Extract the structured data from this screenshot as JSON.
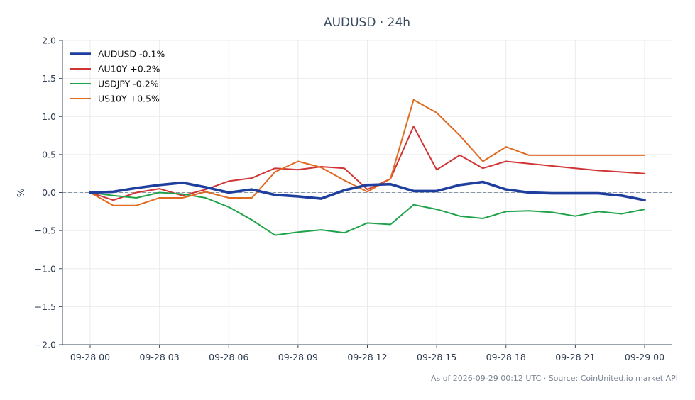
{
  "chart_data": {
    "type": "line",
    "title": "AUDUSD · 24h",
    "ylabel": "%",
    "xlabel": "",
    "ylim": [
      -2.0,
      2.0
    ],
    "yticks": [
      2.0,
      1.5,
      1.0,
      0.5,
      0.0,
      -0.5,
      -1.0,
      -1.5,
      -2.0
    ],
    "ytick_labels": [
      "2.0",
      "1.5",
      "1.0",
      "0.5",
      "0.0",
      "−0.5",
      "−1.0",
      "−1.5",
      "−2.0"
    ],
    "x": [
      "09-28 00:00",
      "09-28 01:00",
      "09-28 02:00",
      "09-28 03:00",
      "09-28 04:00",
      "09-28 05:00",
      "09-28 06:00",
      "09-28 07:00",
      "09-28 08:00",
      "09-28 09:00",
      "09-28 10:00",
      "09-28 11:00",
      "09-28 12:00",
      "09-28 13:00",
      "09-28 14:00",
      "09-28 15:00",
      "09-28 16:00",
      "09-28 17:00",
      "09-28 18:00",
      "09-28 19:00",
      "09-28 20:00",
      "09-28 21:00",
      "09-28 22:00",
      "09-28 23:00",
      "09-29 00:00"
    ],
    "xticks": [
      0,
      3,
      6,
      9,
      12,
      15,
      18,
      21,
      24
    ],
    "xtick_labels": [
      "09-28 00",
      "09-28 03",
      "09-28 06",
      "09-28 09",
      "09-28 12",
      "09-28 15",
      "09-28 18",
      "09-28 21",
      "09-29 00"
    ],
    "grid": true,
    "zero_line": true,
    "legend_position": "top-left",
    "series": [
      {
        "name": "AUDUSD -0.1%",
        "color": "#1f3f9e",
        "emphasis": true,
        "values": [
          0.0,
          0.01,
          0.06,
          0.1,
          0.13,
          0.07,
          0.0,
          0.04,
          -0.03,
          -0.05,
          -0.08,
          0.03,
          0.1,
          0.11,
          0.02,
          0.02,
          0.1,
          0.14,
          0.04,
          0.0,
          -0.01,
          -0.01,
          -0.01,
          -0.04,
          -0.1
        ]
      },
      {
        "name": "AU10Y +0.2%",
        "color": "#d13434",
        "values": [
          0.0,
          -0.1,
          0.0,
          0.05,
          -0.04,
          0.04,
          0.15,
          0.19,
          0.32,
          0.3,
          0.34,
          0.32,
          0.04,
          0.18,
          0.87,
          0.3,
          0.49,
          0.32,
          0.41,
          0.38,
          0.35,
          0.32,
          0.29,
          0.27,
          0.25
        ]
      },
      {
        "name": "USDJPY -0.2%",
        "color": "#1fa24a",
        "values": [
          0.0,
          -0.04,
          -0.07,
          0.0,
          -0.02,
          -0.07,
          -0.19,
          -0.36,
          -0.56,
          -0.52,
          -0.49,
          -0.53,
          -0.4,
          -0.42,
          -0.16,
          -0.22,
          -0.31,
          -0.34,
          -0.25,
          -0.24,
          -0.26,
          -0.31,
          -0.25,
          -0.28,
          -0.22
        ]
      },
      {
        "name": "US10Y +0.5%",
        "color": "#e06a1f",
        "values": [
          0.0,
          -0.17,
          -0.17,
          -0.07,
          -0.07,
          0.01,
          -0.07,
          -0.07,
          0.27,
          0.41,
          0.33,
          0.16,
          0.01,
          0.18,
          1.22,
          1.05,
          0.75,
          0.41,
          0.6,
          0.49,
          0.49,
          0.49,
          0.49,
          0.49,
          0.49
        ]
      }
    ],
    "footer": "As of 2026-09-29 00:12 UTC · Source: CoinUnited.io market API"
  }
}
